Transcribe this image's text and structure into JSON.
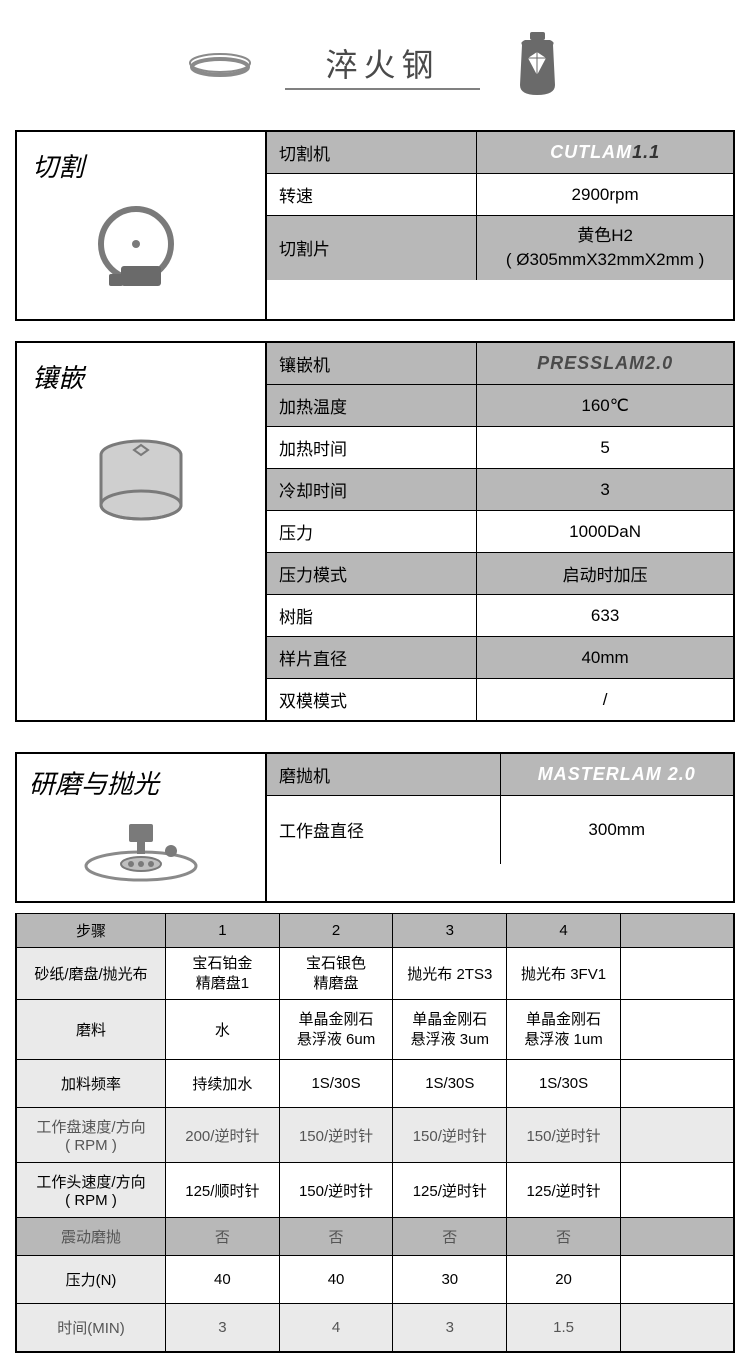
{
  "header": {
    "title": "淬火钢"
  },
  "cutting": {
    "title": "切割",
    "rows": [
      {
        "label": "切割机",
        "value_brand": "CUTLAM",
        "value_suffix": "1.1",
        "shaded": true
      },
      {
        "label": "转速",
        "value": "2900rpm"
      },
      {
        "label": "切割片",
        "value": "黄色H2\n( Ø305mmX32mmX2mm )",
        "shaded": true
      }
    ]
  },
  "mounting": {
    "title": "镶嵌",
    "rows": [
      {
        "label": "镶嵌机",
        "value": "PRESSLAM2.0",
        "shaded": true,
        "bold": true
      },
      {
        "label": "加热温度",
        "value": "160℃",
        "shaded": true
      },
      {
        "label": "加热时间",
        "value": "5"
      },
      {
        "label": "冷却时间",
        "value": "3",
        "shaded": true
      },
      {
        "label": "压力",
        "value": "1000DaN"
      },
      {
        "label": "压力模式",
        "value": "启动时加压",
        "shaded": true
      },
      {
        "label": "树脂",
        "value": "633"
      },
      {
        "label": "样片直径",
        "value": "40mm",
        "shaded": true
      },
      {
        "label": "双模模式",
        "value": "/"
      }
    ]
  },
  "polishing": {
    "title": "研磨与抛光",
    "spec": [
      {
        "label": "磨抛机",
        "value_brand": "MASTERLAM  2.0",
        "shaded": true
      },
      {
        "label": "工作盘直径",
        "value": "300mm"
      }
    ],
    "steps_header": {
      "label": "步骤",
      "cols": [
        "1",
        "2",
        "3",
        "4",
        ""
      ]
    },
    "rows": [
      {
        "label": "砂纸/磨盘/抛光布",
        "cells": [
          "宝石铂金\n精磨盘1",
          "宝石银色\n精磨盘",
          "抛光布 2TS3",
          "抛光布 3FV1",
          ""
        ],
        "tall": false
      },
      {
        "label": "磨料",
        "cells": [
          "水",
          "单晶金刚石\n悬浮液 6um",
          "单晶金刚石\n悬浮液 3um",
          "单晶金刚石\n悬浮液 1um",
          ""
        ],
        "tall": true
      },
      {
        "label": "加料频率",
        "cells": [
          "持续加水",
          "1S/30S",
          "1S/30S",
          "1S/30S",
          ""
        ],
        "med": true
      },
      {
        "label": "工作盘速度/方向\n( RPM )",
        "cells": [
          "200/逆时针",
          "150/逆时针",
          "150/逆时针",
          "150/逆时针",
          ""
        ],
        "shaded": "light"
      },
      {
        "label": "工作头速度/方向\n( RPM )",
        "cells": [
          "125/顺时针",
          "150/逆时针",
          "125/逆时针",
          "125/逆时针",
          ""
        ]
      },
      {
        "label": "震动磨抛",
        "cells": [
          "否",
          "否",
          "否",
          "否",
          ""
        ],
        "shaded": "dark"
      },
      {
        "label": "压力(N)",
        "cells": [
          "40",
          "40",
          "30",
          "20",
          ""
        ],
        "med": true
      },
      {
        "label": "时间(MIN)",
        "cells": [
          "3",
          "4",
          "3",
          "1.5",
          ""
        ],
        "shaded": "light",
        "med": true
      }
    ]
  }
}
